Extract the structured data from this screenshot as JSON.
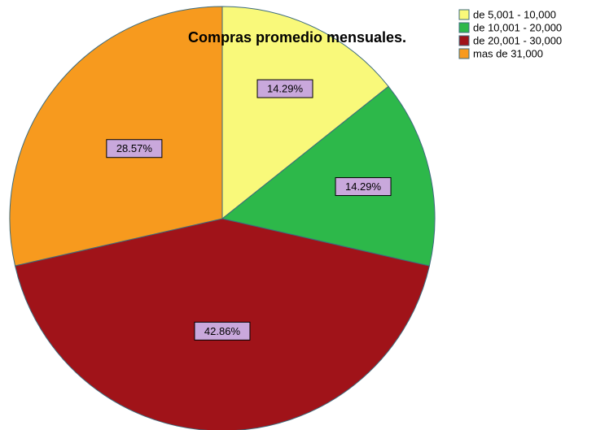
{
  "chart_data": {
    "type": "pie",
    "title": "Compras promedio mensuales.",
    "categories": [
      "de 5,001 - 10,000",
      "de 10,001 - 20,000",
      "de 20,001 - 30,000",
      "mas de 31,000"
    ],
    "values": [
      14.29,
      14.29,
      42.86,
      28.57
    ],
    "value_labels": [
      "14.29%",
      "14.29%",
      "42.86%",
      "28.57%"
    ],
    "colors": [
      "#f9f97a",
      "#2db84a",
      "#a01319",
      "#f79a1e"
    ]
  }
}
